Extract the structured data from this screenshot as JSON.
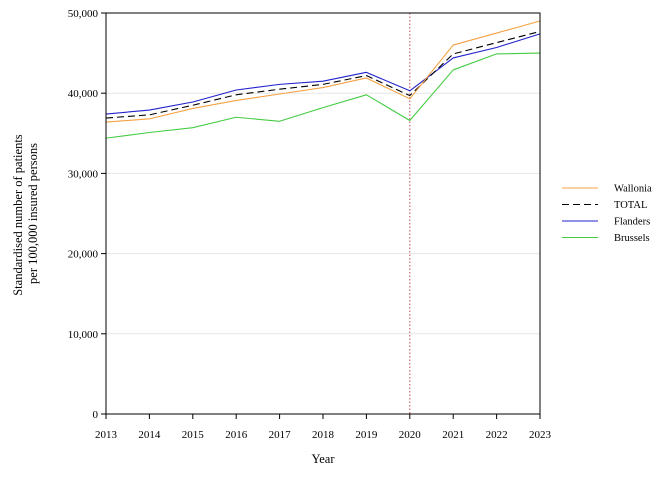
{
  "chart_data": {
    "type": "line",
    "title": "",
    "xlabel": "Year",
    "ylabel_lines": [
      "Standardised number of patients",
      "per 100,000 insured persons"
    ],
    "x": [
      2013,
      2014,
      2015,
      2016,
      2017,
      2018,
      2019,
      2020,
      2021,
      2022,
      2023
    ],
    "x_tick_labels": [
      "2013",
      "2014",
      "2015",
      "2016",
      "2017",
      "2018",
      "2019",
      "2020",
      "2021",
      "2022",
      "2023"
    ],
    "xlim": [
      2013,
      2023
    ],
    "ylim": [
      0,
      50000
    ],
    "y_ticks": [
      0,
      10000,
      20000,
      30000,
      40000,
      50000
    ],
    "y_tick_labels": [
      "0",
      "10,000",
      "20,000",
      "30,000",
      "40,000",
      "50,000"
    ],
    "grid": "horizontal",
    "reference_line": {
      "x": 2020,
      "color": "#c0504d",
      "style": "dotted"
    },
    "legend_position": "right",
    "series": [
      {
        "name": "Wallonia",
        "color": "#f5a142",
        "dash": "solid",
        "values": [
          36400,
          36800,
          38100,
          39100,
          39900,
          40700,
          41900,
          39300,
          46000,
          47500,
          49000
        ]
      },
      {
        "name": "TOTAL",
        "color": "#000000",
        "dash": "dashed",
        "values": [
          36900,
          37300,
          38500,
          39800,
          40500,
          41100,
          42200,
          39700,
          44900,
          46300,
          47700
        ]
      },
      {
        "name": "Flanders",
        "color": "#2222cc",
        "dash": "solid",
        "values": [
          37400,
          37900,
          38900,
          40400,
          41100,
          41500,
          42600,
          40300,
          44400,
          45700,
          47400
        ]
      },
      {
        "name": "Brussels",
        "color": "#44cc44",
        "dash": "solid",
        "values": [
          34400,
          35100,
          35700,
          37000,
          36500,
          38200,
          39800,
          36600,
          42900,
          44900,
          45000
        ]
      }
    ]
  }
}
